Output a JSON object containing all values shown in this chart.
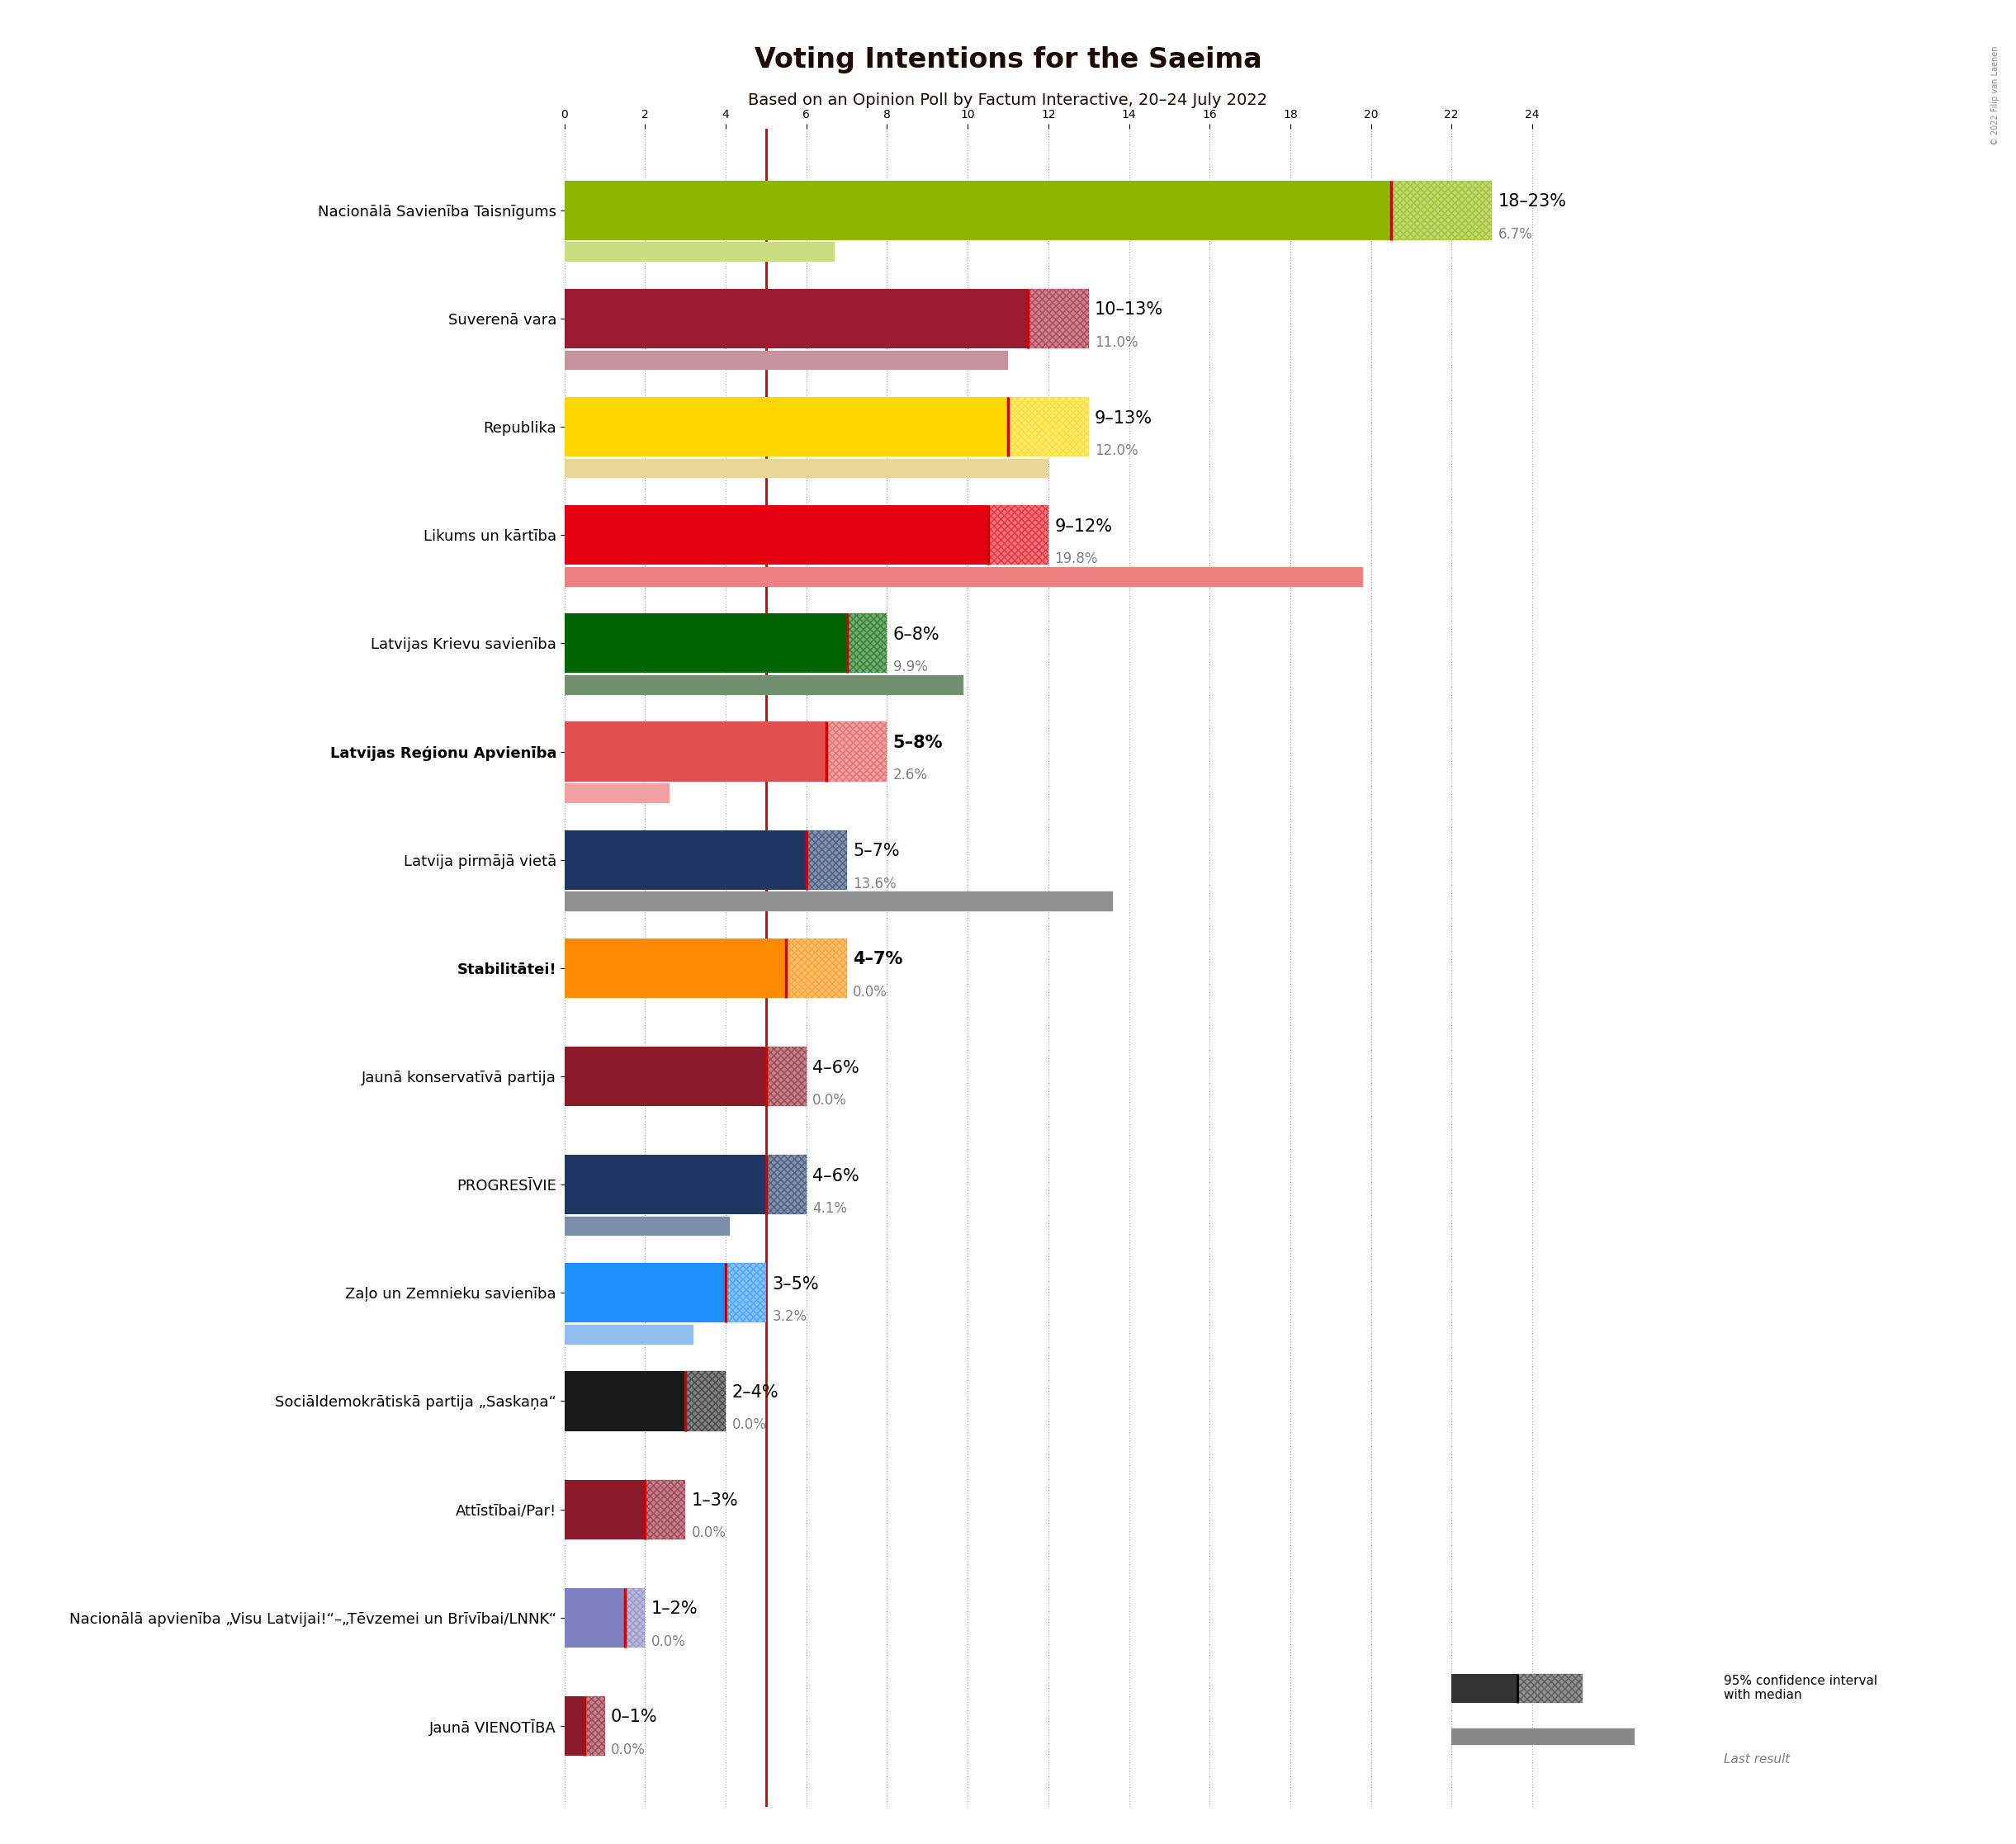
{
  "title": "Voting Intentions for the Saeima",
  "subtitle": "Based on an Opinion Poll by Factum Interactive, 20–24 July 2022",
  "copyright": "© 2022 Filip van Laenen",
  "parties": [
    {
      "name": "Jaunā VIENOTĪBA",
      "low": 18,
      "high": 23,
      "median": 20.5,
      "last": 6.7,
      "label": "18–23%",
      "last_label": "6.7%",
      "color": "#8DB600",
      "last_color": "#c8de80",
      "bold": false
    },
    {
      "name": "Nacionālā apvienība „Visu Latvijai!“–„Tēvzemei un Brīvībai/LNNK“",
      "low": 10,
      "high": 13,
      "median": 11.5,
      "last": 11.0,
      "label": "10–13%",
      "last_label": "11.0%",
      "color": "#9B1B30",
      "last_color": "#c8929e",
      "bold": false
    },
    {
      "name": "Attīstībai/Par!",
      "low": 9,
      "high": 13,
      "median": 11.0,
      "last": 12.0,
      "label": "9–13%",
      "last_label": "12.0%",
      "color": "#FFD700",
      "last_color": "#e8d898",
      "bold": false
    },
    {
      "name": "Sociāldemokrātiskā partija „Saskaņa“",
      "low": 9,
      "high": 12,
      "median": 10.5,
      "last": 19.8,
      "label": "9–12%",
      "last_label": "19.8%",
      "color": "#E4000F",
      "last_color": "#f08080",
      "bold": false
    },
    {
      "name": "Zaļo un Zemnieku savienība",
      "low": 6,
      "high": 8,
      "median": 7.0,
      "last": 9.9,
      "label": "6–8%",
      "last_label": "9.9%",
      "color": "#006400",
      "last_color": "#709070",
      "bold": false
    },
    {
      "name": "PROGRESĪVIE",
      "low": 5,
      "high": 8,
      "median": 6.5,
      "last": 2.6,
      "label": "5–8%",
      "last_label": "2.6%",
      "color": "#E05050",
      "last_color": "#f0a0a0",
      "bold": true
    },
    {
      "name": "Jaunā konservatīvā partija",
      "low": 5,
      "high": 7,
      "median": 6.0,
      "last": 13.6,
      "label": "5–7%",
      "last_label": "13.6%",
      "color": "#1F3664",
      "last_color": "#909090",
      "bold": false
    },
    {
      "name": "Stabilitātei!",
      "low": 4,
      "high": 7,
      "median": 5.5,
      "last": 0.0,
      "label": "4–7%",
      "last_label": "0.0%",
      "color": "#FF8C00",
      "last_color": "#ffcc80",
      "bold": true
    },
    {
      "name": "Latvija pirmājā vietā",
      "low": 4,
      "high": 6,
      "median": 5.0,
      "last": 0.0,
      "label": "4–6%",
      "last_label": "0.0%",
      "color": "#8B1A2A",
      "last_color": "#c07070",
      "bold": false
    },
    {
      "name": "Latvijas Reģionu Apvienība",
      "low": 4,
      "high": 6,
      "median": 5.0,
      "last": 4.1,
      "label": "4–6%",
      "last_label": "4.1%",
      "color": "#1F3664",
      "last_color": "#7b8faa",
      "bold": false
    },
    {
      "name": "Latvijas Krievu savienība",
      "low": 3,
      "high": 5,
      "median": 4.0,
      "last": 3.2,
      "label": "3–5%",
      "last_label": "3.2%",
      "color": "#1E90FF",
      "last_color": "#90c0f0",
      "bold": false
    },
    {
      "name": "Likums un kārtība",
      "low": 2,
      "high": 4,
      "median": 3.0,
      "last": 0.0,
      "label": "2–4%",
      "last_label": "0.0%",
      "color": "#1a1a1a",
      "last_color": "#808080",
      "bold": false
    },
    {
      "name": "Republika",
      "low": 1,
      "high": 3,
      "median": 2.0,
      "last": 0.0,
      "label": "1–3%",
      "last_label": "0.0%",
      "color": "#8B1A2A",
      "last_color": "#c07070",
      "bold": false
    },
    {
      "name": "Suverenā vara",
      "low": 1,
      "high": 2,
      "median": 1.5,
      "last": 0.0,
      "label": "1–2%",
      "last_label": "0.0%",
      "color": "#8080C0",
      "last_color": "#b0b0e0",
      "bold": false
    },
    {
      "name": "Nacionālā Savienība Taisnīgums",
      "low": 0,
      "high": 1,
      "median": 0.5,
      "last": 0.0,
      "label": "0–1%",
      "last_label": "0.0%",
      "color": "#8B1A2A",
      "last_color": "#c07070",
      "bold": false
    }
  ],
  "xlim": [
    0,
    25
  ],
  "background_color": "#ffffff",
  "bar_height": 0.55,
  "last_bar_height": 0.18,
  "threshold_line": 5.0,
  "threshold_color": "#cc0000"
}
